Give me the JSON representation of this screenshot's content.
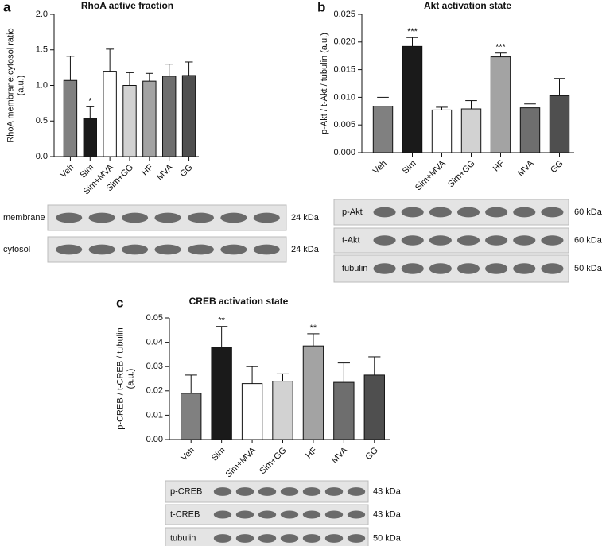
{
  "chart_data": [
    {
      "type": "bar",
      "panel": "a",
      "title": "RhoA active fraction",
      "ylabel": [
        "RhoA membrane:cytosol ratio",
        "(a.u.)"
      ],
      "categories": [
        "Veh",
        "Sim",
        "Sim+MVA",
        "Sim+GG",
        "HF",
        "MVA",
        "GG"
      ],
      "values": [
        1.07,
        0.54,
        1.2,
        1.0,
        1.06,
        1.13,
        1.14
      ],
      "errors": [
        0.34,
        0.16,
        0.31,
        0.18,
        0.11,
        0.17,
        0.19
      ],
      "annotations": [
        null,
        "*",
        null,
        null,
        null,
        null,
        null
      ],
      "colors": [
        "#808080",
        "#1a1a1a",
        "#ffffff",
        "#d2d2d2",
        "#a3a3a3",
        "#6e6e6e",
        "#4f4f4f"
      ],
      "ylim": [
        0,
        2
      ],
      "yticks": [
        {
          "value": 0,
          "label": "0.0"
        },
        0.5,
        {
          "value": 1,
          "label": "1.0"
        },
        1.5,
        {
          "value": 2,
          "label": "2.0"
        }
      ],
      "blot": [
        {
          "label": "membrane",
          "size": "24 kDa"
        },
        {
          "label": "cytosol",
          "size": "24 kDa"
        }
      ]
    },
    {
      "type": "bar",
      "panel": "b",
      "title": "Akt activation state",
      "ylabel": [
        "p-Akt / t-Akt / tubulin (a.u.)"
      ],
      "categories": [
        "Veh",
        "Sim",
        "Sim+MVA",
        "Sim+GG",
        "HF",
        "MVA",
        "GG"
      ],
      "values": [
        0.0084,
        0.0192,
        0.0077,
        0.0079,
        0.0173,
        0.0081,
        0.0103
      ],
      "errors": [
        0.0016,
        0.0016,
        0.0005,
        0.0015,
        0.0007,
        0.0007,
        0.0031
      ],
      "annotations": [
        null,
        "***",
        null,
        null,
        "***",
        null,
        null
      ],
      "colors": [
        "#808080",
        "#1a1a1a",
        "#ffffff",
        "#d2d2d2",
        "#a3a3a3",
        "#6e6e6e",
        "#4f4f4f"
      ],
      "ylim": [
        0,
        0.025
      ],
      "yticks": [
        {
          "value": 0,
          "label": "0.000"
        },
        0.005,
        {
          "value": 0.01,
          "label": "0.010"
        },
        0.015,
        {
          "value": 0.02,
          "label": "0.020"
        },
        0.025
      ],
      "blot": [
        {
          "label": "p-Akt",
          "size": "60 kDa"
        },
        {
          "label": "t-Akt",
          "size": "60 kDa"
        },
        {
          "label": "tubulin",
          "size": "50 kDa"
        }
      ]
    },
    {
      "type": "bar",
      "panel": "c",
      "title": "CREB activation state",
      "ylabel": [
        "p-CREB / t-CREB / tubulin",
        "(a.u.)"
      ],
      "categories": [
        "Veh",
        "Sim",
        "Sim+MVA",
        "Sim+GG",
        "HF",
        "MVA",
        "GG"
      ],
      "values": [
        0.019,
        0.038,
        0.023,
        0.024,
        0.0385,
        0.0235,
        0.0265
      ],
      "errors": [
        0.0075,
        0.0085,
        0.007,
        0.003,
        0.005,
        0.008,
        0.0075
      ],
      "annotations": [
        null,
        "**",
        null,
        null,
        "**",
        null,
        null
      ],
      "colors": [
        "#808080",
        "#1a1a1a",
        "#ffffff",
        "#d2d2d2",
        "#a3a3a3",
        "#6e6e6e",
        "#4f4f4f"
      ],
      "ylim": [
        0,
        0.05
      ],
      "yticks": [
        {
          "value": 0,
          "label": "0.00"
        },
        0.01,
        0.02,
        0.03,
        0.04,
        0.05
      ],
      "blot": [
        {
          "label": "p-CREB",
          "size": "43 kDa"
        },
        {
          "label": "t-CREB",
          "size": "43 kDa"
        },
        {
          "label": "tubulin",
          "size": "50 kDa"
        }
      ]
    }
  ]
}
